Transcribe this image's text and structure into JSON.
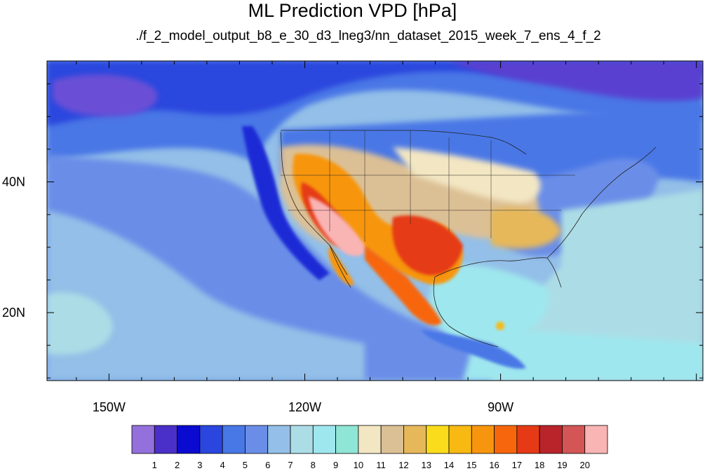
{
  "title": "ML Prediction VPD [hPa]",
  "subtitle": "./f_2_model_output_b8_e_30_d3_lneg3/nn_dataset_2015_week_7_ens_4_f_2",
  "axes": {
    "x_ticks": [
      {
        "label": "150W",
        "lon": -150
      },
      {
        "label": "120W",
        "lon": -120
      },
      {
        "label": "90W",
        "lon": -90
      }
    ],
    "y_ticks": [
      {
        "label": "40N",
        "lat": 40
      },
      {
        "label": "20N",
        "lat": 20
      }
    ]
  },
  "colorbar": {
    "labels": [
      "1",
      "2",
      "3",
      "4",
      "5",
      "6",
      "7",
      "8",
      "9",
      "10",
      "11",
      "12",
      "13",
      "14",
      "15",
      "16",
      "17",
      "18",
      "19",
      "20"
    ],
    "colors": [
      "#9370db",
      "#4b2fc9",
      "#0a0ad0",
      "#2a46de",
      "#4877e6",
      "#6a8ee8",
      "#93bfe8",
      "#acdde6",
      "#9fe7ee",
      "#8fe5d6",
      "#f3e6c2",
      "#dcc095",
      "#e6b85a",
      "#fbdc1c",
      "#f8b912",
      "#f7960e",
      "#f7660c",
      "#e53a15",
      "#b8242a",
      "#d35555",
      "#f9b4b4"
    ]
  },
  "map_colors": {
    "ocean_base": "#93bfe8",
    "land_base": "#6a8ee8"
  }
}
